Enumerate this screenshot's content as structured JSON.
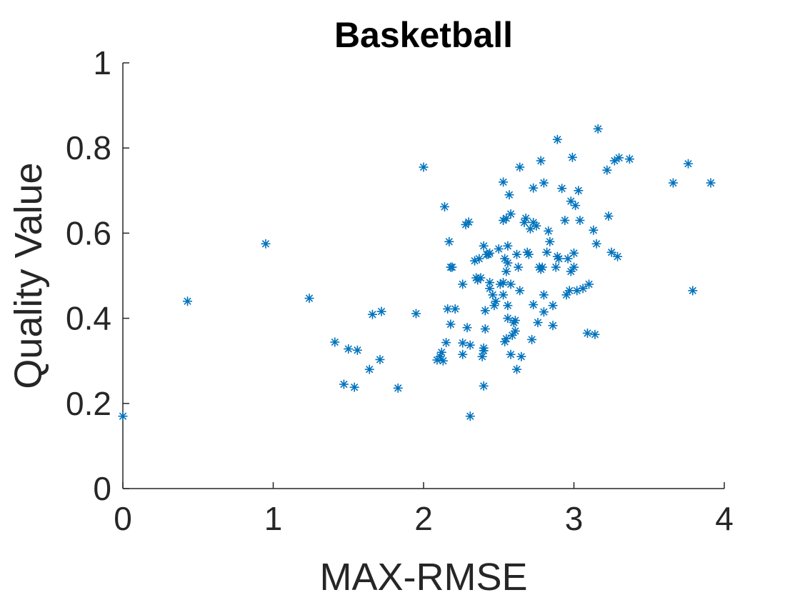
{
  "chart_data": {
    "type": "scatter",
    "title": "Basketball",
    "xlabel": "MAX-RMSE",
    "ylabel": "Quality Value",
    "xlim": [
      0,
      4
    ],
    "ylim": [
      0,
      1
    ],
    "xticks": [
      0,
      1,
      2,
      3,
      4
    ],
    "yticks": [
      0,
      0.2,
      0.4,
      0.6,
      0.8,
      1
    ],
    "xtick_labels": [
      "0",
      "1",
      "2",
      "3",
      "4"
    ],
    "ytick_labels": [
      "0",
      "0.2",
      "0.4",
      "0.6",
      "0.8",
      "1"
    ],
    "grid": false,
    "marker": "asterisk",
    "color": "#0072BD",
    "series": [
      {
        "points": [
          [
            0.0,
            0.17
          ],
          [
            0.43,
            0.44
          ],
          [
            0.95,
            0.575
          ],
          [
            1.24,
            0.447
          ],
          [
            1.41,
            0.344
          ],
          [
            1.47,
            0.245
          ],
          [
            1.5,
            0.328
          ],
          [
            1.54,
            0.238
          ],
          [
            1.56,
            0.325
          ],
          [
            1.64,
            0.28
          ],
          [
            1.66,
            0.409
          ],
          [
            1.71,
            0.303
          ],
          [
            1.72,
            0.416
          ],
          [
            1.83,
            0.236
          ],
          [
            1.95,
            0.411
          ],
          [
            2.0,
            0.755
          ],
          [
            2.09,
            0.302
          ],
          [
            2.11,
            0.31
          ],
          [
            2.12,
            0.32
          ],
          [
            2.13,
            0.3
          ],
          [
            2.14,
            0.662
          ],
          [
            2.15,
            0.343
          ],
          [
            2.16,
            0.422
          ],
          [
            2.17,
            0.58
          ],
          [
            2.18,
            0.52
          ],
          [
            2.18,
            0.386
          ],
          [
            2.19,
            0.52
          ],
          [
            2.21,
            0.422
          ],
          [
            2.26,
            0.48
          ],
          [
            2.26,
            0.342
          ],
          [
            2.26,
            0.315
          ],
          [
            2.28,
            0.62
          ],
          [
            2.29,
            0.378
          ],
          [
            2.3,
            0.626
          ],
          [
            2.31,
            0.17
          ],
          [
            2.31,
            0.337
          ],
          [
            2.34,
            0.535
          ],
          [
            2.35,
            0.495
          ],
          [
            2.36,
            0.49
          ],
          [
            2.37,
            0.54
          ],
          [
            2.38,
            0.495
          ],
          [
            2.39,
            0.31
          ],
          [
            2.4,
            0.57
          ],
          [
            2.4,
            0.324
          ],
          [
            2.4,
            0.33
          ],
          [
            2.4,
            0.241
          ],
          [
            2.41,
            0.418
          ],
          [
            2.41,
            0.375
          ],
          [
            2.42,
            0.55
          ],
          [
            2.43,
            0.55
          ],
          [
            2.44,
            0.47
          ],
          [
            2.44,
            0.484
          ],
          [
            2.44,
            0.553
          ],
          [
            2.46,
            0.455
          ],
          [
            2.47,
            0.43
          ],
          [
            2.48,
            0.44
          ],
          [
            2.5,
            0.563
          ],
          [
            2.51,
            0.48
          ],
          [
            2.53,
            0.72
          ],
          [
            2.53,
            0.484
          ],
          [
            2.53,
            0.455
          ],
          [
            2.53,
            0.63
          ],
          [
            2.54,
            0.54
          ],
          [
            2.54,
            0.345
          ],
          [
            2.55,
            0.635
          ],
          [
            2.55,
            0.352
          ],
          [
            2.55,
            0.51
          ],
          [
            2.56,
            0.43
          ],
          [
            2.56,
            0.57
          ],
          [
            2.56,
            0.53
          ],
          [
            2.56,
            0.4
          ],
          [
            2.57,
            0.69
          ],
          [
            2.58,
            0.645
          ],
          [
            2.58,
            0.48
          ],
          [
            2.58,
            0.315
          ],
          [
            2.59,
            0.36
          ],
          [
            2.6,
            0.39
          ],
          [
            2.61,
            0.37
          ],
          [
            2.61,
            0.395
          ],
          [
            2.62,
            0.28
          ],
          [
            2.62,
            0.55
          ],
          [
            2.63,
            0.52
          ],
          [
            2.64,
            0.755
          ],
          [
            2.64,
            0.465
          ],
          [
            2.65,
            0.31
          ],
          [
            2.67,
            0.625
          ],
          [
            2.68,
            0.635
          ],
          [
            2.69,
            0.555
          ],
          [
            2.7,
            0.55
          ],
          [
            2.71,
            0.61
          ],
          [
            2.72,
            0.35
          ],
          [
            2.73,
            0.432
          ],
          [
            2.73,
            0.625
          ],
          [
            2.73,
            0.706
          ],
          [
            2.75,
            0.617
          ],
          [
            2.76,
            0.39
          ],
          [
            2.77,
            0.52
          ],
          [
            2.78,
            0.515
          ],
          [
            2.78,
            0.77
          ],
          [
            2.79,
            0.52
          ],
          [
            2.8,
            0.718
          ],
          [
            2.8,
            0.455
          ],
          [
            2.8,
            0.415
          ],
          [
            2.82,
            0.555
          ],
          [
            2.83,
            0.605
          ],
          [
            2.84,
            0.58
          ],
          [
            2.86,
            0.43
          ],
          [
            2.86,
            0.383
          ],
          [
            2.88,
            0.52
          ],
          [
            2.89,
            0.545
          ],
          [
            2.89,
            0.82
          ],
          [
            2.9,
            0.54
          ],
          [
            2.92,
            0.705
          ],
          [
            2.94,
            0.63
          ],
          [
            2.95,
            0.455
          ],
          [
            2.96,
            0.54
          ],
          [
            2.97,
            0.465
          ],
          [
            2.98,
            0.51
          ],
          [
            2.98,
            0.675
          ],
          [
            2.99,
            0.778
          ],
          [
            3.0,
            0.553
          ],
          [
            3.0,
            0.52
          ],
          [
            3.01,
            0.665
          ],
          [
            3.02,
            0.465
          ],
          [
            3.03,
            0.7
          ],
          [
            3.04,
            0.63
          ],
          [
            3.06,
            0.47
          ],
          [
            3.09,
            0.365
          ],
          [
            3.1,
            0.48
          ],
          [
            3.13,
            0.607
          ],
          [
            3.14,
            0.362
          ],
          [
            3.15,
            0.575
          ],
          [
            3.16,
            0.845
          ],
          [
            3.22,
            0.748
          ],
          [
            3.23,
            0.64
          ],
          [
            3.25,
            0.555
          ],
          [
            3.27,
            0.77
          ],
          [
            3.29,
            0.545
          ],
          [
            3.3,
            0.777
          ],
          [
            3.37,
            0.774
          ],
          [
            3.66,
            0.718
          ],
          [
            3.76,
            0.763
          ],
          [
            3.79,
            0.465
          ],
          [
            3.91,
            0.718
          ]
        ]
      }
    ]
  }
}
